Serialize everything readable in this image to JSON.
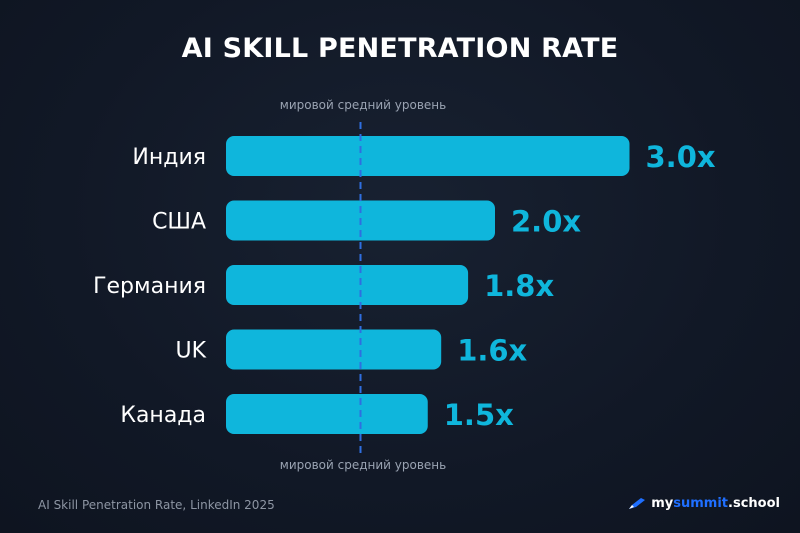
{
  "chart_data": {
    "type": "bar",
    "orientation": "horizontal",
    "title": "AI SKILL PENETRATION RATE",
    "categories": [
      "Индия",
      "США",
      "Германия",
      "UK",
      "Канада"
    ],
    "values": [
      3.0,
      2.0,
      1.8,
      1.6,
      1.5
    ],
    "value_labels": [
      "3.0x",
      "2.0x",
      "1.8x",
      "1.6x",
      "1.5x"
    ],
    "reference_line": {
      "value": 1.0,
      "label_top": "мировой средний уровень",
      "label_bottom": "мировой средний уровень",
      "style": "dashed"
    },
    "xlim": [
      0,
      3.0
    ],
    "grid": false,
    "legend": "none",
    "colors": {
      "bar": "#0fb6dc",
      "value_label": "#0fb6dc",
      "reference_line": "#2f6fe0",
      "background": "#131a27"
    }
  },
  "footer": {
    "source": "AI Skill Penetration Rate, LinkedIn 2025",
    "brand_part1": "my",
    "brand_part2": "summit",
    "brand_part3": ".school",
    "brand_icon": "pen-icon"
  }
}
